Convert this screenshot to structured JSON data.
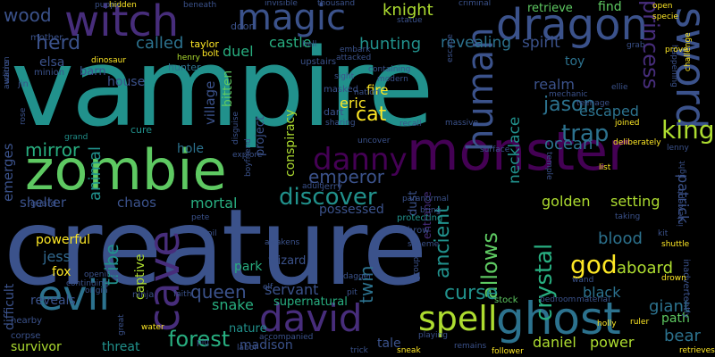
{
  "palette": {
    "purple_dark": "#440154",
    "purple": "#472d7b",
    "indigo": "#3b528b",
    "blue": "#2c728e",
    "teal": "#21918c",
    "green": "#28ae80",
    "lightgreen": "#5ec962",
    "lime": "#addc30",
    "yellow": "#fde725",
    "navy": "#31688e"
  },
  "words": [
    "vampire",
    "creature",
    "monster",
    "zombie",
    "ghost",
    "dragon",
    "witch",
    "magic",
    "spell",
    "david",
    "evil",
    "cave",
    "sword",
    "human",
    "princess",
    "danny",
    "cat",
    "jason",
    "trap",
    "king",
    "emperor",
    "discover",
    "forest",
    "mirror",
    "herd",
    "wood",
    "called",
    "knight",
    "hunting",
    "revealing",
    "spirit",
    "god",
    "crystal",
    "allows",
    "curse",
    "ancient",
    "twin",
    "queen",
    "tribe",
    "animal",
    "necklace",
    "eric",
    "fire",
    "duel",
    "castle",
    "realm",
    "escaped",
    "ocean",
    "golden",
    "setting",
    "blood",
    "black",
    "aboard",
    "bear",
    "giant",
    "patrick",
    "daniel",
    "power",
    "survivor",
    "threat",
    "madison",
    "tale",
    "snake",
    "servant",
    "park",
    "fox",
    "jess",
    "mortal",
    "chaos",
    "shelter",
    "emerges",
    "reveals",
    "difficult",
    "captive",
    "powerful",
    "village",
    "hole",
    "bitten",
    "project",
    "conspiracy",
    "house",
    "elsa",
    "barn",
    "retrieve",
    "find",
    "toy",
    "path",
    "nature",
    "supernatural",
    "wizard",
    "dust",
    "entrance",
    "possessed",
    "hunter",
    "mother",
    "taylor",
    "bolt",
    "henry",
    "door",
    "village",
    "ninja",
    "jin",
    "minion",
    "dinosaur",
    "warns",
    "rose",
    "grand",
    "cure",
    "dart",
    "masked",
    "upstairs",
    "adult",
    "jerry",
    "throw",
    "protecting",
    "paranormal",
    "surface",
    "uncover",
    "stock",
    "bedroom",
    "material",
    "sneak",
    "remains",
    "follower",
    "holly",
    "ruler",
    "retrieves",
    "inadvertently",
    "happening",
    "challenge",
    "prove",
    "specie",
    "open",
    "hidden",
    "beneath",
    "invisible",
    "thousand",
    "criminal",
    "statue",
    "deliberately",
    "teenage",
    "joined",
    "lenny",
    "list",
    "light",
    "intercept",
    "taking",
    "kit",
    "shuttle",
    "drown",
    "labor",
    "faith",
    "origin",
    "water",
    "great",
    "corpse",
    "nearby",
    "guard",
    "escape",
    "recall",
    "massive",
    "sharing",
    "modern",
    "sight",
    "attacked",
    "embark",
    "hell",
    "grab",
    "mechanic",
    "ellie",
    "wand",
    "dagger",
    "elf",
    "pit",
    "oil",
    "pete",
    "awakens",
    "scheme",
    "group",
    "playing",
    "accompanied",
    "trick",
    "puppy",
    "audition",
    "continuing",
    "opening",
    "bring",
    "temple",
    "disguise",
    "boyfriend",
    "explore",
    "pig",
    "nation",
    "containing",
    "jeremy"
  ]
}
